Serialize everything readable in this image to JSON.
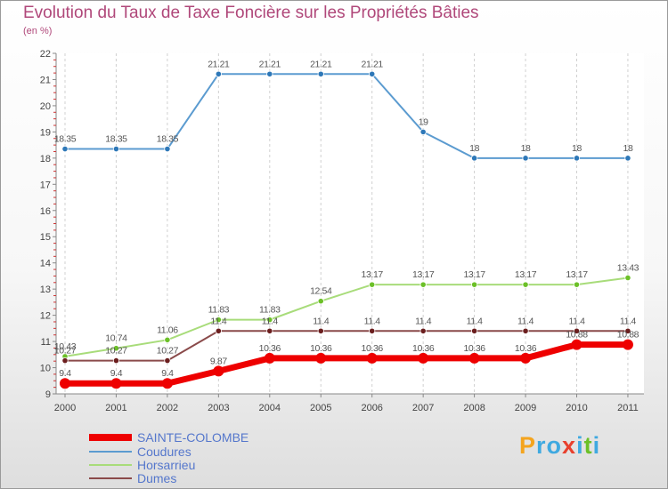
{
  "chart_data": {
    "type": "line",
    "title": "Evolution du Taux de Taxe Foncière sur les Propriétés Bâties",
    "subtitle": "(en %)",
    "xlabel": "",
    "ylabel": "(en %)",
    "ylim": [
      9,
      22
    ],
    "yticks": [
      "9",
      "10",
      "11",
      "12",
      "13",
      "14",
      "15",
      "16",
      "17",
      "18",
      "19",
      "20",
      "21",
      "22"
    ],
    "categories": [
      "2000",
      "2001",
      "2002",
      "2003",
      "2004",
      "2005",
      "2006",
      "2007",
      "2008",
      "2009",
      "2010",
      "2011"
    ],
    "legend_position": "bottom-left",
    "grid": "vertical dashed",
    "series": [
      {
        "name": "Coudures",
        "color": "#5b9bd0",
        "marker_color": "#2e78b8",
        "values": [
          18.35,
          18.35,
          18.35,
          21.21,
          21.21,
          21.21,
          21.21,
          19,
          18,
          18,
          18,
          18
        ],
        "labels": [
          "18.35",
          "18.35",
          "18.35",
          "21.21",
          "21.21",
          "21.21",
          "21.21",
          "19",
          "18",
          "18",
          "18",
          "18"
        ]
      },
      {
        "name": "Horsarrieu",
        "color": "#a8dc7a",
        "marker_color": "#6cc028",
        "values": [
          10.43,
          10.74,
          11.06,
          11.83,
          11.83,
          12.54,
          13.17,
          13.17,
          13.17,
          13.17,
          13.17,
          13.43
        ],
        "labels": [
          "10.43",
          "10.74",
          "11.06",
          "11.83",
          "11.83",
          "12.54",
          "13.17",
          "13.17",
          "13.17",
          "13.17",
          "13.17",
          "13.43"
        ]
      },
      {
        "name": "Dumes",
        "color": "#8a4a4a",
        "marker_color": "#6b1e1e",
        "values": [
          10.27,
          10.27,
          10.27,
          11.4,
          11.4,
          11.4,
          11.4,
          11.4,
          11.4,
          11.4,
          11.4,
          11.4
        ],
        "labels": [
          "10.27",
          "10.27",
          "10.27",
          "11.4",
          "11.4",
          "11.4",
          "11.4",
          "11.4",
          "11.4",
          "11.4",
          "11.4",
          "11.4"
        ]
      },
      {
        "name": "SAINTE-COLOMBE",
        "color": "#ee0000",
        "marker_color": "#ee0000",
        "values": [
          9.4,
          9.4,
          9.4,
          9.87,
          10.36,
          10.36,
          10.36,
          10.36,
          10.36,
          10.36,
          10.88,
          10.88
        ],
        "labels": [
          "9.4",
          "9.4",
          "9.4",
          "9.87",
          "10.36",
          "10.36",
          "10.36",
          "10.36",
          "10.36",
          "10.36",
          "10.88",
          "10.88"
        ]
      }
    ],
    "legend": [
      "SAINTE-COLOMBE",
      "Coudures",
      "Horsarrieu",
      "Dumes"
    ]
  },
  "brand": {
    "logo_letters": [
      "P",
      "r",
      "o",
      "x",
      "i",
      "t",
      "i"
    ],
    "logo_colors": [
      "#f4a41e",
      "#3fa9e0",
      "#3fa9e0",
      "#e8402d",
      "#3fa9e0",
      "#6cc028",
      "#3fa9e0"
    ]
  }
}
